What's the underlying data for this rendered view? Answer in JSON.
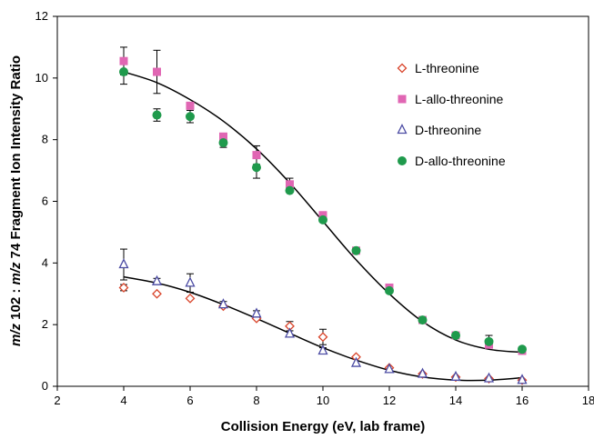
{
  "chart_data": {
    "type": "scatter",
    "title": "",
    "xlabel": "Collision Energy (eV, lab frame)",
    "ylabel_parts": [
      "m/z",
      " 102 : ",
      "m/z",
      " 74  Fragment Ion Intensity Ratio"
    ],
    "xlim": [
      2,
      18
    ],
    "ylim": [
      0,
      12
    ],
    "xticks": [
      2,
      4,
      6,
      8,
      10,
      12,
      14,
      16,
      18
    ],
    "yticks": [
      0,
      2,
      4,
      6,
      8,
      10,
      12
    ],
    "grid": false,
    "legend_position": "top-right",
    "series": [
      {
        "name": "L-threonine",
        "marker": "diamond-open",
        "color": "#d9452b",
        "points": [
          {
            "x": 4,
            "y": 3.2,
            "err": 0.1
          },
          {
            "x": 5,
            "y": 3.0,
            "err": 0
          },
          {
            "x": 6,
            "y": 2.85,
            "err": 0
          },
          {
            "x": 7,
            "y": 2.6,
            "err": 0
          },
          {
            "x": 8,
            "y": 2.2,
            "err": 0
          },
          {
            "x": 9,
            "y": 1.95,
            "err": 0.15
          },
          {
            "x": 10,
            "y": 1.6,
            "err": 0.25
          },
          {
            "x": 11,
            "y": 0.95,
            "err": 0
          },
          {
            "x": 12,
            "y": 0.6,
            "err": 0
          },
          {
            "x": 13,
            "y": 0.4,
            "err": 0
          },
          {
            "x": 14,
            "y": 0.3,
            "err": 0
          },
          {
            "x": 15,
            "y": 0.25,
            "err": 0
          },
          {
            "x": 16,
            "y": 0.2,
            "err": 0
          }
        ]
      },
      {
        "name": "L-allo-threonine",
        "marker": "square",
        "color": "#e066b3",
        "points": [
          {
            "x": 4,
            "y": 10.55,
            "err": 0.45
          },
          {
            "x": 5,
            "y": 10.2,
            "err": 0.7
          },
          {
            "x": 6,
            "y": 9.1,
            "err": 0
          },
          {
            "x": 7,
            "y": 8.1,
            "err": 0
          },
          {
            "x": 8,
            "y": 7.5,
            "err": 0.3
          },
          {
            "x": 9,
            "y": 6.55,
            "err": 0.2
          },
          {
            "x": 10,
            "y": 5.55,
            "err": 0
          },
          {
            "x": 11,
            "y": 4.4,
            "err": 0
          },
          {
            "x": 12,
            "y": 3.2,
            "err": 0
          },
          {
            "x": 13,
            "y": 2.15,
            "err": 0
          },
          {
            "x": 14,
            "y": 1.65,
            "err": 0
          },
          {
            "x": 15,
            "y": 1.35,
            "err": 0
          },
          {
            "x": 16,
            "y": 1.15,
            "err": 0
          }
        ]
      },
      {
        "name": "D-threonine",
        "marker": "triangle-open",
        "color": "#4b4ba3",
        "points": [
          {
            "x": 4,
            "y": 3.95,
            "err": 0.5
          },
          {
            "x": 5,
            "y": 3.4,
            "err": 0.1
          },
          {
            "x": 6,
            "y": 3.35,
            "err": 0.3
          },
          {
            "x": 7,
            "y": 2.65,
            "err": 0.1
          },
          {
            "x": 8,
            "y": 2.35,
            "err": 0.1
          },
          {
            "x": 9,
            "y": 1.7,
            "err": 0.1
          },
          {
            "x": 10,
            "y": 1.15,
            "err": 0.1
          },
          {
            "x": 11,
            "y": 0.75,
            "err": 0
          },
          {
            "x": 12,
            "y": 0.55,
            "err": 0
          },
          {
            "x": 13,
            "y": 0.4,
            "err": 0
          },
          {
            "x": 14,
            "y": 0.3,
            "err": 0
          },
          {
            "x": 15,
            "y": 0.25,
            "err": 0
          },
          {
            "x": 16,
            "y": 0.2,
            "err": 0
          }
        ]
      },
      {
        "name": "D-allo-threonine",
        "marker": "circle",
        "color": "#1f9a4c",
        "points": [
          {
            "x": 4,
            "y": 10.2,
            "err": 0.4
          },
          {
            "x": 5,
            "y": 8.8,
            "err": 0.2
          },
          {
            "x": 6,
            "y": 8.75,
            "err": 0.2
          },
          {
            "x": 7,
            "y": 7.9,
            "err": 0.15
          },
          {
            "x": 8,
            "y": 7.1,
            "err": 0.35
          },
          {
            "x": 9,
            "y": 6.35,
            "err": 0
          },
          {
            "x": 10,
            "y": 5.4,
            "err": 0
          },
          {
            "x": 11,
            "y": 4.4,
            "err": 0
          },
          {
            "x": 12,
            "y": 3.1,
            "err": 0
          },
          {
            "x": 13,
            "y": 2.15,
            "err": 0
          },
          {
            "x": 14,
            "y": 1.65,
            "err": 0
          },
          {
            "x": 15,
            "y": 1.45,
            "err": 0.2
          },
          {
            "x": 16,
            "y": 1.2,
            "err": 0
          }
        ]
      }
    ],
    "fit_curves": [
      {
        "color": "#000000",
        "points": [
          {
            "x": 4,
            "y": 10.2
          },
          {
            "x": 5,
            "y": 9.85
          },
          {
            "x": 6,
            "y": 9.3
          },
          {
            "x": 7,
            "y": 8.6
          },
          {
            "x": 8,
            "y": 7.7
          },
          {
            "x": 9,
            "y": 6.6
          },
          {
            "x": 10,
            "y": 5.35
          },
          {
            "x": 11,
            "y": 4.1
          },
          {
            "x": 12,
            "y": 3.0
          },
          {
            "x": 13,
            "y": 2.1
          },
          {
            "x": 14,
            "y": 1.5
          },
          {
            "x": 15,
            "y": 1.2
          },
          {
            "x": 16,
            "y": 1.1
          }
        ]
      },
      {
        "color": "#000000",
        "points": [
          {
            "x": 4,
            "y": 3.55
          },
          {
            "x": 5,
            "y": 3.35
          },
          {
            "x": 6,
            "y": 3.05
          },
          {
            "x": 7,
            "y": 2.65
          },
          {
            "x": 8,
            "y": 2.2
          },
          {
            "x": 9,
            "y": 1.72
          },
          {
            "x": 10,
            "y": 1.25
          },
          {
            "x": 11,
            "y": 0.85
          },
          {
            "x": 12,
            "y": 0.52
          },
          {
            "x": 13,
            "y": 0.3
          },
          {
            "x": 14,
            "y": 0.2
          },
          {
            "x": 15,
            "y": 0.2
          },
          {
            "x": 16,
            "y": 0.28
          }
        ]
      }
    ]
  }
}
